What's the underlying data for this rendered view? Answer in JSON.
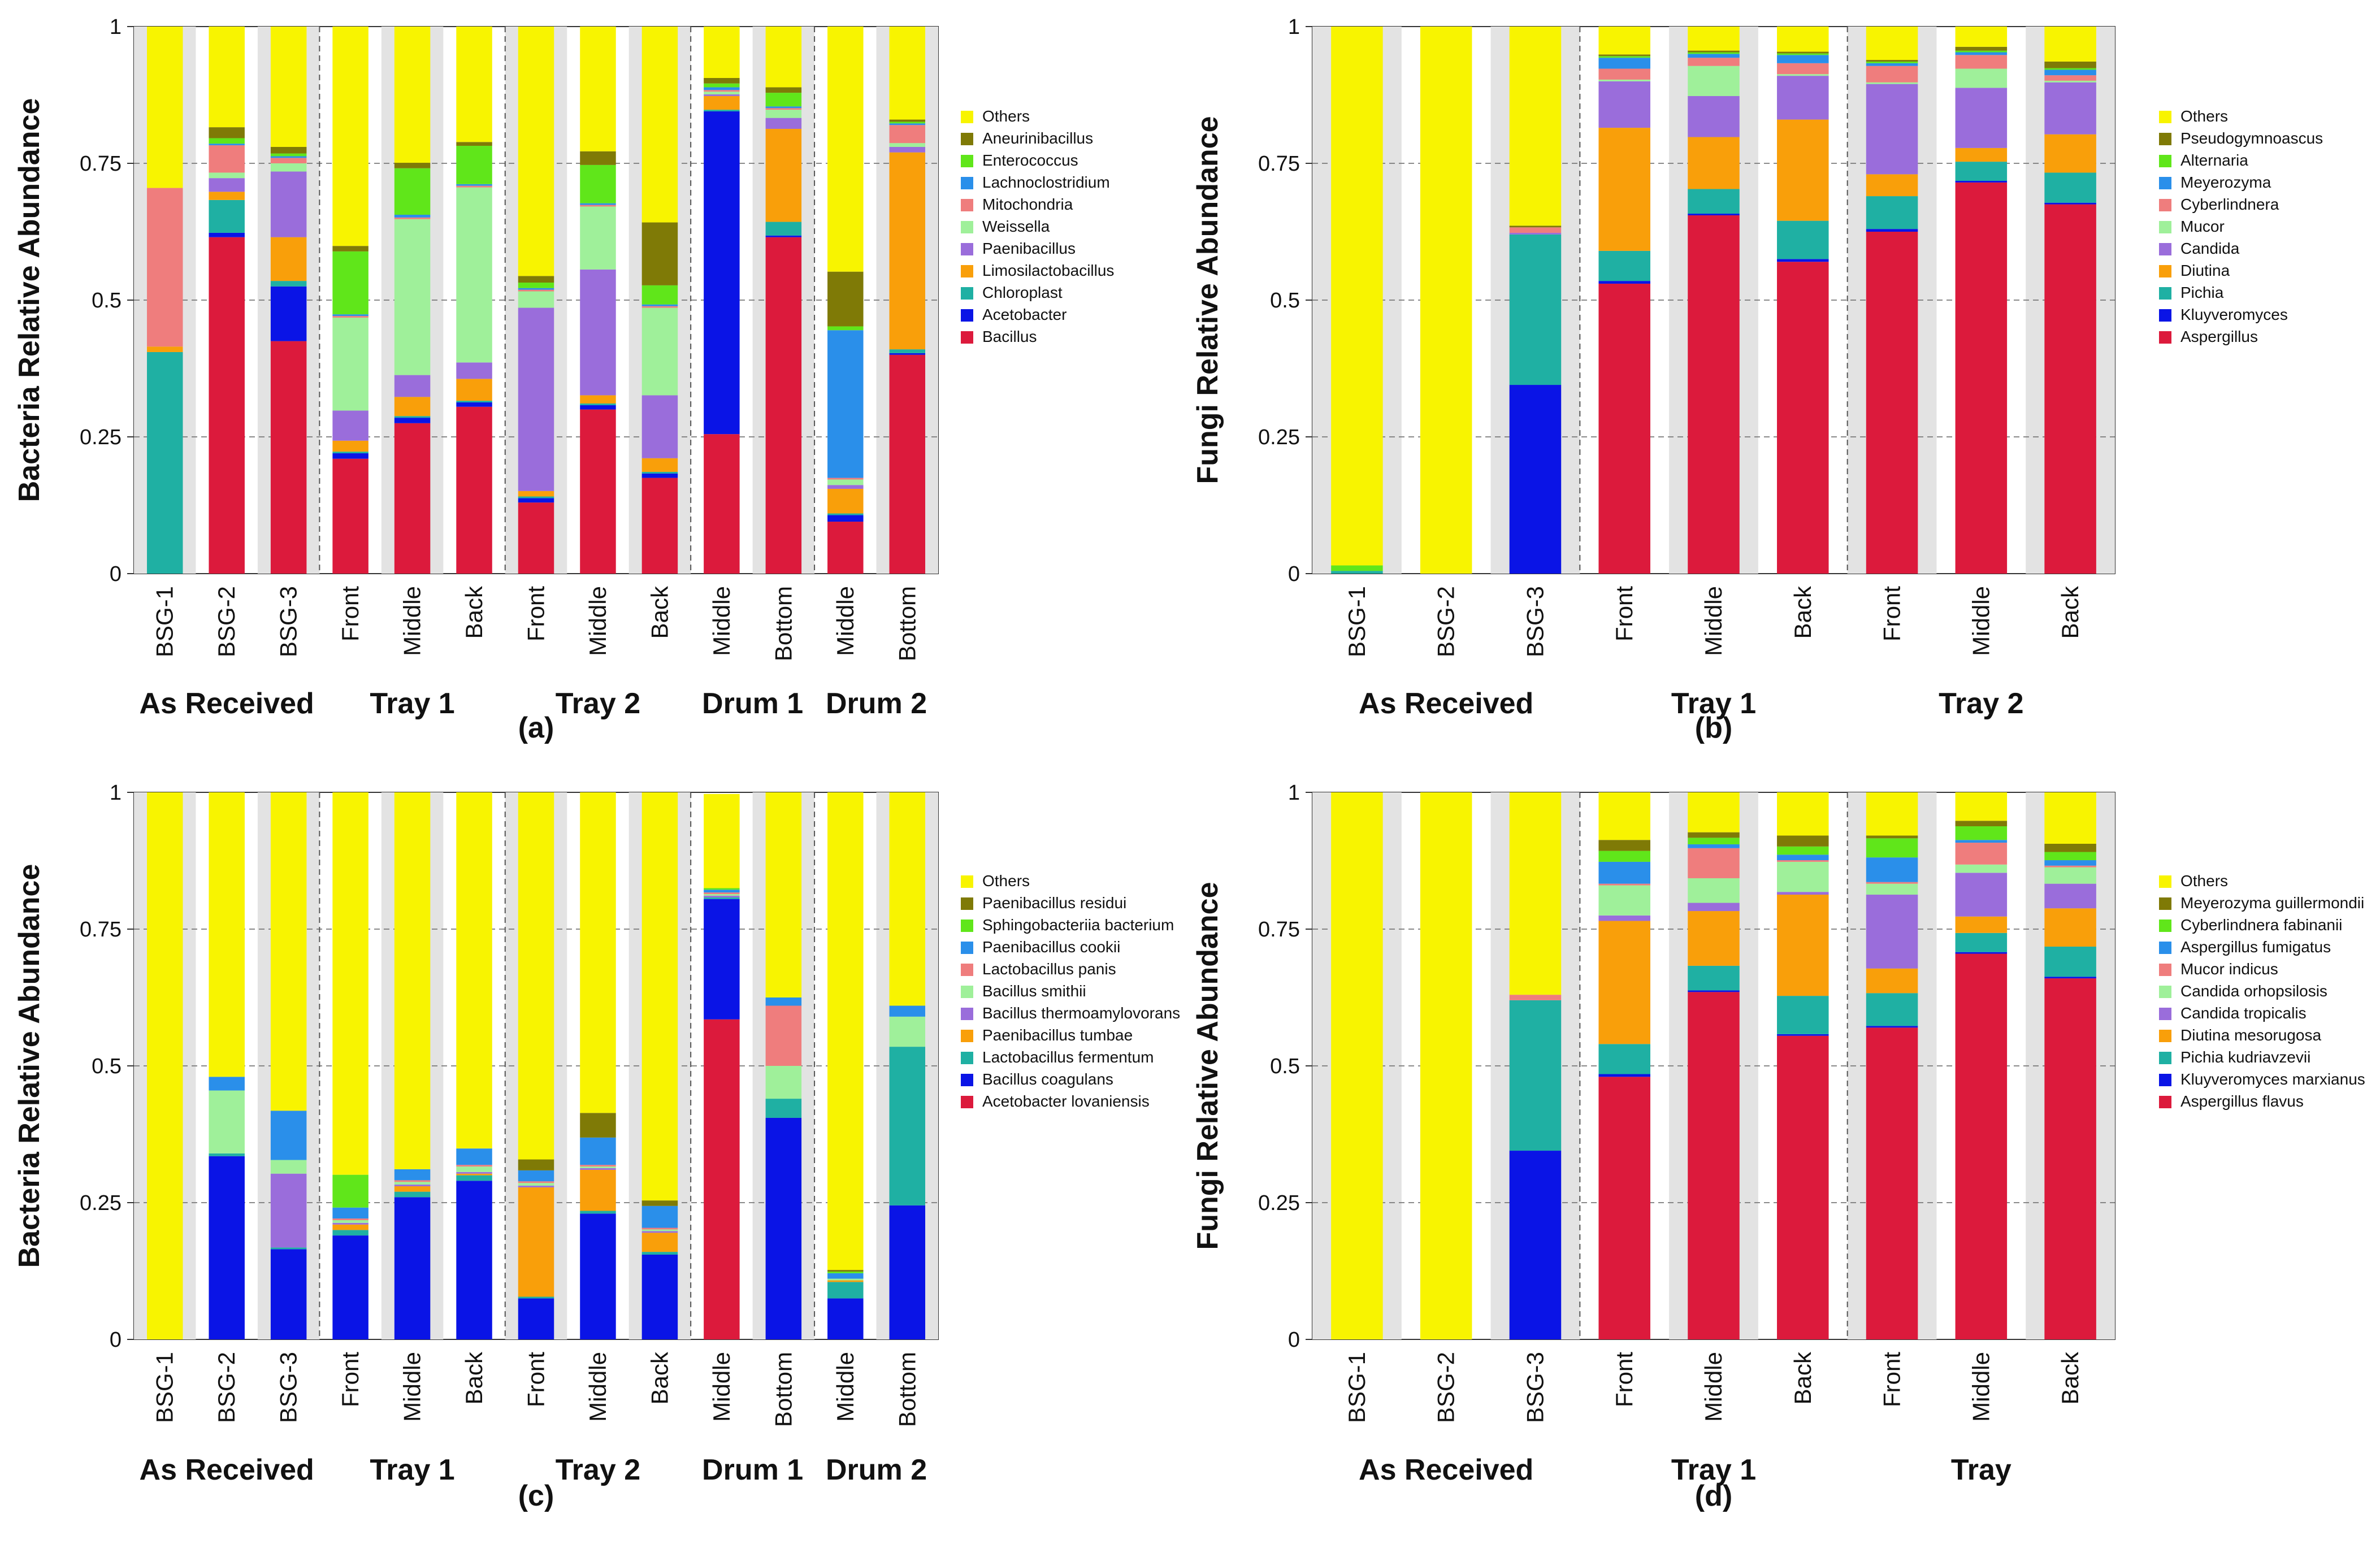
{
  "colors": {
    "Others": "#f8f400",
    "olive": "#7f7a06",
    "green": "#60e61a",
    "blue_light": "#2a8fea",
    "salmon": "#ef7d7d",
    "light_green": "#9ff09a",
    "purple": "#9a6ddb",
    "orange": "#f99f0a",
    "teal": "#1fb0a3",
    "blue": "#0a14e6",
    "red": "#dc1a3c",
    "background": "#e3e3e3"
  },
  "chart_data": [
    {
      "id": "a",
      "type": "bar",
      "stacked": true,
      "panel_label": "(a)",
      "ylabel": "Bacteria Relative Abundance",
      "ylim": [
        0,
        1
      ],
      "yticks": [
        "0",
        "0.25",
        "0.5",
        "0.75",
        "1"
      ],
      "grid": true,
      "legend_position": "right",
      "categories": [
        "BSG-1",
        "BSG-2",
        "BSG-3",
        "Front",
        "Middle",
        "Back",
        "Front",
        "Middle",
        "Back",
        "Middle",
        "Bottom",
        "Middle",
        "Bottom"
      ],
      "group_sizes": [
        3,
        3,
        3,
        2,
        2
      ],
      "groups": [
        "As Received",
        "Tray 1",
        "Tray 2",
        "Drum 1",
        "Drum 2"
      ],
      "series": [
        {
          "name": "Bacillus",
          "color": "#dc1a3c",
          "values": [
            0,
            0.615,
            0.425,
            0.21,
            0.275,
            0.305,
            0.13,
            0.3,
            0.175,
            0.255,
            0.615,
            0.095,
            0.4
          ]
        },
        {
          "name": "Acetobacter",
          "color": "#0a14e6",
          "values": [
            0,
            0.008,
            0.1,
            0.01,
            0.01,
            0.008,
            0.008,
            0.008,
            0.008,
            0.59,
            0.003,
            0.012,
            0.003
          ]
        },
        {
          "name": "Chloroplast",
          "color": "#1fb0a3",
          "values": [
            0.405,
            0.06,
            0.01,
            0.003,
            0.003,
            0.003,
            0.003,
            0.003,
            0.003,
            0.003,
            0.025,
            0.003,
            0.007
          ]
        },
        {
          "name": "Limosilactobacillus",
          "color": "#f99f0a",
          "values": [
            0.01,
            0.015,
            0.08,
            0.02,
            0.035,
            0.04,
            0.01,
            0.015,
            0.025,
            0.025,
            0.17,
            0.045,
            0.36
          ]
        },
        {
          "name": "Paenibacillus",
          "color": "#9a6ddb",
          "values": [
            0,
            0.025,
            0.12,
            0.055,
            0.04,
            0.03,
            0.335,
            0.23,
            0.115,
            0.003,
            0.02,
            0.007,
            0.01
          ]
        },
        {
          "name": "Weissella",
          "color": "#9ff09a",
          "values": [
            0,
            0.01,
            0.015,
            0.17,
            0.285,
            0.32,
            0.03,
            0.115,
            0.16,
            0.005,
            0.015,
            0.01,
            0.007
          ]
        },
        {
          "name": "Mitochondria",
          "color": "#ef7d7d",
          "values": [
            0.29,
            0.05,
            0.01,
            0.003,
            0.003,
            0.003,
            0.003,
            0.003,
            0.003,
            0.003,
            0.003,
            0.003,
            0.033
          ]
        },
        {
          "name": "Lachnoclostridium",
          "color": "#2a8fea",
          "values": [
            0,
            0.003,
            0.003,
            0.003,
            0.005,
            0.003,
            0.003,
            0.003,
            0.003,
            0.005,
            0.003,
            0.27,
            0.003
          ]
        },
        {
          "name": "Enterococcus",
          "color": "#60e61a",
          "values": [
            0,
            0.01,
            0.005,
            0.115,
            0.085,
            0.07,
            0.01,
            0.07,
            0.035,
            0.007,
            0.025,
            0.007,
            0.003
          ]
        },
        {
          "name": "Aneurinibacillus",
          "color": "#7f7a06",
          "values": [
            0,
            0.02,
            0.012,
            0.01,
            0.01,
            0.007,
            0.012,
            0.025,
            0.115,
            0.01,
            0.01,
            0.1,
            0.004
          ]
        },
        {
          "name": "Others",
          "color": "#f8f400",
          "values": [
            0.295,
            0.184,
            0.22,
            0.401,
            0.249,
            0.211,
            0.456,
            0.228,
            0.358,
            0.094,
            0.111,
            0.448,
            0.17
          ]
        }
      ]
    },
    {
      "id": "b",
      "type": "bar",
      "stacked": true,
      "panel_label": "(b)",
      "ylabel": "Fungi Relative Abundance",
      "ylim": [
        0,
        1
      ],
      "yticks": [
        "0",
        "0.25",
        "0.5",
        "0.75",
        "1"
      ],
      "grid": true,
      "legend_position": "right",
      "categories": [
        "BSG-1",
        "BSG-2",
        "BSG-3",
        "Front",
        "Middle",
        "Back",
        "Front",
        "Middle",
        "Back"
      ],
      "group_sizes": [
        3,
        3,
        3
      ],
      "groups": [
        "As Received",
        "Tray 1",
        "Tray 2"
      ],
      "series": [
        {
          "name": "Aspergillus",
          "color": "#dc1a3c",
          "values": [
            0,
            0,
            0,
            0.53,
            0.655,
            0.57,
            0.625,
            0.715,
            0.675
          ]
        },
        {
          "name": "Kluyveromyces",
          "color": "#0a14e6",
          "values": [
            0,
            0,
            0.345,
            0.005,
            0.003,
            0.005,
            0.005,
            0.003,
            0.003
          ]
        },
        {
          "name": "Pichia",
          "color": "#1fb0a3",
          "values": [
            0.005,
            0,
            0.275,
            0.055,
            0.045,
            0.07,
            0.06,
            0.035,
            0.055
          ]
        },
        {
          "name": "Diutina",
          "color": "#f99f0a",
          "values": [
            0,
            0,
            0,
            0.225,
            0.095,
            0.185,
            0.04,
            0.025,
            0.07
          ]
        },
        {
          "name": "Candida",
          "color": "#9a6ddb",
          "values": [
            0,
            0,
            0.003,
            0.085,
            0.075,
            0.08,
            0.165,
            0.11,
            0.095
          ]
        },
        {
          "name": "Mucor",
          "color": "#9ff09a",
          "values": [
            0,
            0,
            0,
            0.003,
            0.055,
            0.003,
            0.003,
            0.035,
            0.003
          ]
        },
        {
          "name": "Cyberlindnera",
          "color": "#ef7d7d",
          "values": [
            0,
            0,
            0.01,
            0.02,
            0.015,
            0.02,
            0.03,
            0.025,
            0.01
          ]
        },
        {
          "name": "Meyerozyma",
          "color": "#2a8fea",
          "values": [
            0,
            0,
            0,
            0.02,
            0.007,
            0.015,
            0.005,
            0.005,
            0.01
          ]
        },
        {
          "name": "Alternaria",
          "color": "#60e61a",
          "values": [
            0.01,
            0,
            0,
            0.003,
            0.003,
            0.003,
            0.003,
            0.003,
            0.003
          ]
        },
        {
          "name": "Pseudogymnoascus",
          "color": "#7f7a06",
          "values": [
            0,
            0,
            0.003,
            0.003,
            0.003,
            0.003,
            0.003,
            0.007,
            0.012
          ]
        },
        {
          "name": "Others",
          "color": "#f8f400",
          "values": [
            0.985,
            1,
            0.364,
            0.051,
            0.044,
            0.046,
            0.061,
            0.037,
            0.064
          ]
        }
      ]
    },
    {
      "id": "c",
      "type": "bar",
      "stacked": true,
      "panel_label": "(c)",
      "ylabel": "Bacteria Relative Abundance",
      "ylim": [
        0,
        1
      ],
      "yticks": [
        "0",
        "0.25",
        "0.5",
        "0.75",
        "1"
      ],
      "grid": true,
      "legend_position": "right",
      "categories": [
        "BSG-1",
        "BSG-2",
        "BSG-3",
        "Front",
        "Middle",
        "Back",
        "Front",
        "Middle",
        "Back",
        "Middle",
        "Bottom",
        "Middle",
        "Bottom"
      ],
      "group_sizes": [
        3,
        3,
        3,
        2,
        2
      ],
      "groups": [
        "As Received",
        "Tray 1",
        "Tray 2",
        "Drum 1",
        "Drum 2"
      ],
      "series": [
        {
          "name": "Acetobacter lovaniensis",
          "color": "#dc1a3c",
          "values": [
            0,
            0,
            0,
            0,
            0,
            0,
            0,
            0,
            0,
            0.585,
            0,
            0,
            0
          ]
        },
        {
          "name": "Bacillus coagulans",
          "color": "#0a14e6",
          "values": [
            0,
            0.335,
            0.165,
            0.19,
            0.26,
            0.29,
            0.075,
            0.23,
            0.155,
            0.22,
            0.405,
            0.075,
            0.245
          ]
        },
        {
          "name": "Lactobacillus fermentum",
          "color": "#1fb0a3",
          "values": [
            0,
            0.005,
            0.003,
            0.01,
            0.01,
            0.01,
            0.003,
            0.005,
            0.005,
            0.003,
            0.035,
            0.03,
            0.29
          ]
        },
        {
          "name": "Paenibacillus tumbae",
          "color": "#f99f0a",
          "values": [
            0,
            0,
            0,
            0.01,
            0.01,
            0.003,
            0.2,
            0.075,
            0.035,
            0,
            0,
            0.003,
            0
          ]
        },
        {
          "name": "Bacillus thermoamylovorans",
          "color": "#9a6ddb",
          "values": [
            0,
            0,
            0.135,
            0.003,
            0.003,
            0.003,
            0.003,
            0.003,
            0.003,
            0.003,
            0,
            0,
            0
          ]
        },
        {
          "name": "Bacillus smithii",
          "color": "#9ff09a",
          "values": [
            0,
            0.115,
            0.025,
            0.005,
            0.005,
            0.01,
            0.005,
            0.003,
            0.003,
            0.003,
            0.06,
            0.003,
            0.055
          ]
        },
        {
          "name": "Lactobacillus panis",
          "color": "#ef7d7d",
          "values": [
            0,
            0,
            0,
            0.003,
            0.003,
            0.003,
            0.003,
            0.003,
            0.003,
            0.003,
            0.11,
            0,
            0
          ]
        },
        {
          "name": "Paenibacillus cookii",
          "color": "#2a8fea",
          "values": [
            0,
            0.025,
            0.09,
            0.02,
            0.02,
            0.03,
            0.02,
            0.05,
            0.04,
            0.005,
            0.015,
            0.01,
            0.02
          ]
        },
        {
          "name": "Sphingobacteriia bacterium",
          "color": "#60e61a",
          "values": [
            0,
            0,
            0,
            0.06,
            0,
            0,
            0,
            0,
            0,
            0.003,
            0,
            0.003,
            0
          ]
        },
        {
          "name": "Paenibacillus residui",
          "color": "#7f7a06",
          "values": [
            0,
            0,
            0,
            0,
            0,
            0,
            0.02,
            0.045,
            0.01,
            0,
            0,
            0.003,
            0
          ]
        },
        {
          "name": "Others",
          "color": "#f8f400",
          "values": [
            1,
            0.52,
            0.582,
            0.699,
            0.689,
            0.651,
            0.671,
            0.586,
            0.746,
            0.172,
            0.375,
            0.873,
            0.39
          ]
        }
      ]
    },
    {
      "id": "d",
      "type": "bar",
      "stacked": true,
      "panel_label": "(d)",
      "ylabel": "Fungi Relative Abundance",
      "ylim": [
        0,
        1
      ],
      "yticks": [
        "0",
        "0.25",
        "0.5",
        "0.75",
        "1"
      ],
      "grid": true,
      "legend_position": "right",
      "categories": [
        "BSG-1",
        "BSG-2",
        "BSG-3",
        "Front",
        "Middle",
        "Back",
        "Front",
        "Middle",
        "Back"
      ],
      "group_sizes": [
        3,
        3,
        3
      ],
      "groups": [
        "As Received",
        "Tray 1",
        "Tray"
      ],
      "series": [
        {
          "name": "Aspergillus flavus",
          "color": "#dc1a3c",
          "values": [
            0,
            0,
            0,
            0.48,
            0.635,
            0.555,
            0.57,
            0.705,
            0.66
          ]
        },
        {
          "name": "Kluyveromyces marxianus",
          "color": "#0a14e6",
          "values": [
            0,
            0,
            0.345,
            0.005,
            0.003,
            0.003,
            0.003,
            0.003,
            0.003
          ]
        },
        {
          "name": "Pichia kudriavzevii",
          "color": "#1fb0a3",
          "values": [
            0,
            0,
            0.275,
            0.055,
            0.045,
            0.07,
            0.06,
            0.035,
            0.055
          ]
        },
        {
          "name": "Diutina mesorugosa",
          "color": "#f99f0a",
          "values": [
            0,
            0,
            0,
            0.225,
            0.1,
            0.185,
            0.045,
            0.03,
            0.07
          ]
        },
        {
          "name": "Candida tropicalis",
          "color": "#9a6ddb",
          "values": [
            0,
            0,
            0,
            0.01,
            0.015,
            0.005,
            0.135,
            0.08,
            0.045
          ]
        },
        {
          "name": "Candida orhopsilosis",
          "color": "#9ff09a",
          "values": [
            0,
            0,
            0,
            0.055,
            0.045,
            0.055,
            0.02,
            0.015,
            0.03
          ]
        },
        {
          "name": "Mucor indicus",
          "color": "#ef7d7d",
          "values": [
            0,
            0,
            0.01,
            0.003,
            0.055,
            0.003,
            0.003,
            0.04,
            0.003
          ]
        },
        {
          "name": "Aspergillus fumigatus",
          "color": "#2a8fea",
          "values": [
            0,
            0,
            0,
            0.04,
            0.007,
            0.01,
            0.045,
            0.005,
            0.01
          ]
        },
        {
          "name": "Cyberlindnera fabinanii",
          "color": "#60e61a",
          "values": [
            0,
            0,
            0,
            0.02,
            0.012,
            0.015,
            0.035,
            0.025,
            0.015
          ]
        },
        {
          "name": "Meyerozyma guillermondii",
          "color": "#7f7a06",
          "values": [
            0,
            0,
            0,
            0.02,
            0.01,
            0.02,
            0.005,
            0.01,
            0.015
          ]
        },
        {
          "name": "Others",
          "color": "#f8f400",
          "values": [
            1,
            1,
            0.37,
            0.087,
            0.073,
            0.079,
            0.079,
            0.052,
            0.094
          ]
        }
      ]
    }
  ]
}
